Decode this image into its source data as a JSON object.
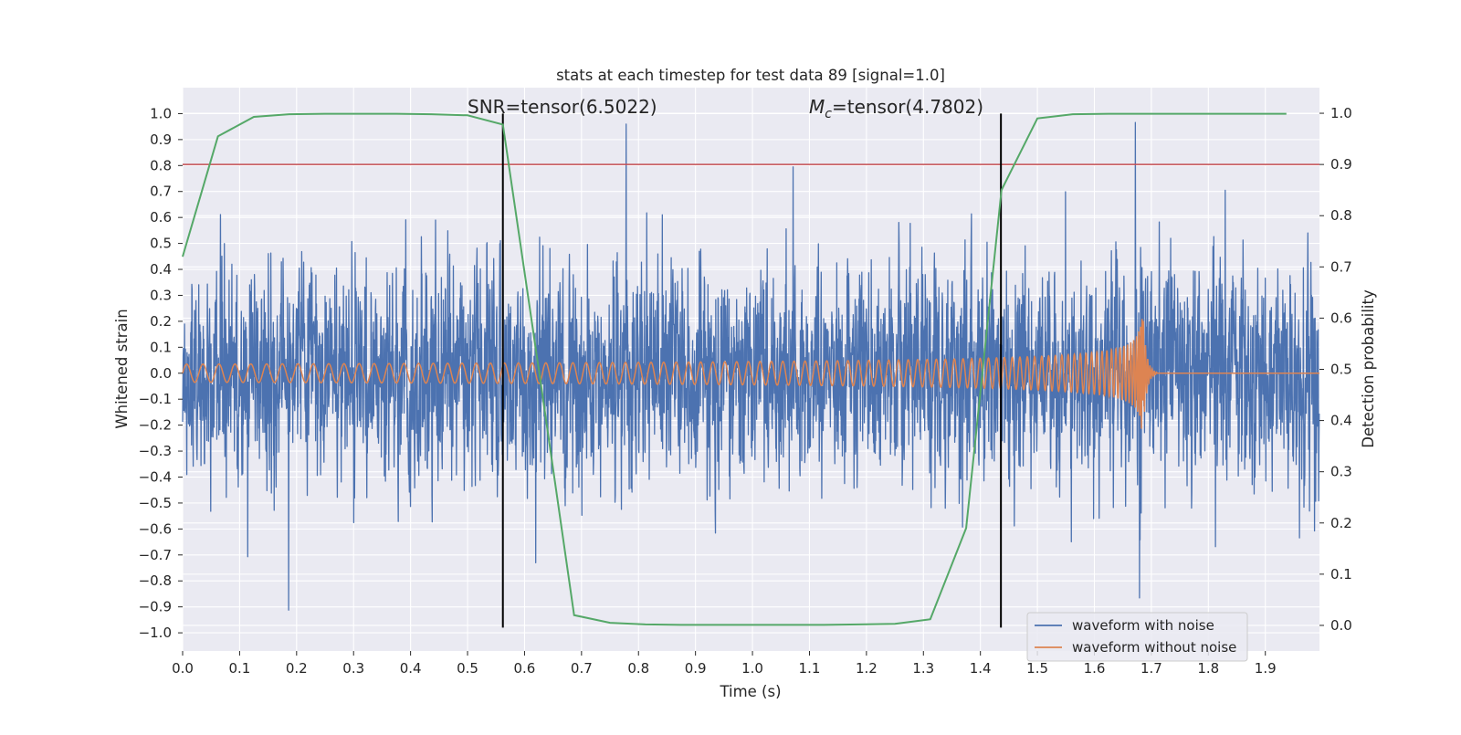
{
  "chart_data": {
    "type": "line",
    "title": "stats at each timestep for test data 89 [signal=1.0]",
    "xlabel": "Time (s)",
    "ylabel": "Whitened strain",
    "y2label": "Detection probability",
    "xlim": [
      0.0,
      1.995
    ],
    "ylim": [
      -1.07,
      1.1
    ],
    "y2lim": [
      -0.05,
      1.05
    ],
    "x_ticks": [
      "0.0",
      "0.1",
      "0.2",
      "0.3",
      "0.4",
      "0.5",
      "0.6",
      "0.7",
      "0.8",
      "0.9",
      "1.0",
      "1.1",
      "1.2",
      "1.3",
      "1.4",
      "1.5",
      "1.6",
      "1.7",
      "1.8",
      "1.9"
    ],
    "y_ticks": [
      "1.0",
      "0.9",
      "0.8",
      "0.7",
      "0.6",
      "0.5",
      "0.4",
      "0.3",
      "0.2",
      "0.1",
      "0.0",
      "−0.1",
      "−0.2",
      "−0.3",
      "−0.4",
      "−0.5",
      "−0.6",
      "−0.7",
      "−0.8",
      "−0.9",
      "−1.0"
    ],
    "y2_ticks": [
      "1.0",
      "0.9",
      "0.8",
      "0.7",
      "0.6",
      "0.5",
      "0.4",
      "0.3",
      "0.2",
      "0.1",
      "0.0"
    ],
    "grid": true,
    "legend_position": "lower-right",
    "annotations": {
      "snr": "SNR=tensor(6.5022)",
      "mc_symbol": "M",
      "mc_subscript": "c",
      "mc_value": "=tensor(4.7802)"
    },
    "threshold": {
      "y2": 0.9,
      "color": "#c44e52"
    },
    "vlines": [
      {
        "x": 0.562,
        "y_from": -0.98,
        "y_to": 1.0,
        "color": "#000000"
      },
      {
        "x": 1.436,
        "y_from": -0.98,
        "y_to": 1.0,
        "color": "#000000"
      }
    ],
    "series": [
      {
        "name": "waveform with noise",
        "color": "#4c72b0",
        "kind": "noise",
        "sample_rate": 2048,
        "amplitude_sigma": 0.26,
        "x_range": [
          0.0,
          1.995
        ]
      },
      {
        "name": "waveform without noise",
        "color": "#dd8452",
        "kind": "chirp",
        "x_range": [
          0.0,
          1.995
        ],
        "f_start": 35,
        "merger_time": 1.685,
        "amp_start": 0.035,
        "amp_peak": 0.24,
        "ringdown_end": 1.71
      },
      {
        "name": "",
        "color": "#55a868",
        "axis": "y2",
        "x": [
          0.0,
          0.062,
          0.125,
          0.187,
          0.25,
          0.312,
          0.375,
          0.437,
          0.5,
          0.562,
          0.625,
          0.687,
          0.75,
          0.812,
          0.875,
          0.937,
          1.0,
          1.062,
          1.125,
          1.187,
          1.25,
          1.312,
          1.375,
          1.437,
          1.5,
          1.562,
          1.625,
          1.687,
          1.75,
          1.812,
          1.875,
          1.937
        ],
        "values": [
          0.72,
          0.955,
          0.993,
          0.998,
          0.999,
          0.999,
          0.999,
          0.998,
          0.996,
          0.978,
          0.5,
          0.02,
          0.005,
          0.002,
          0.001,
          0.001,
          0.001,
          0.001,
          0.001,
          0.002,
          0.003,
          0.012,
          0.19,
          0.85,
          0.99,
          0.998,
          0.999,
          0.999,
          0.999,
          0.999,
          0.999,
          0.999
        ]
      }
    ]
  }
}
